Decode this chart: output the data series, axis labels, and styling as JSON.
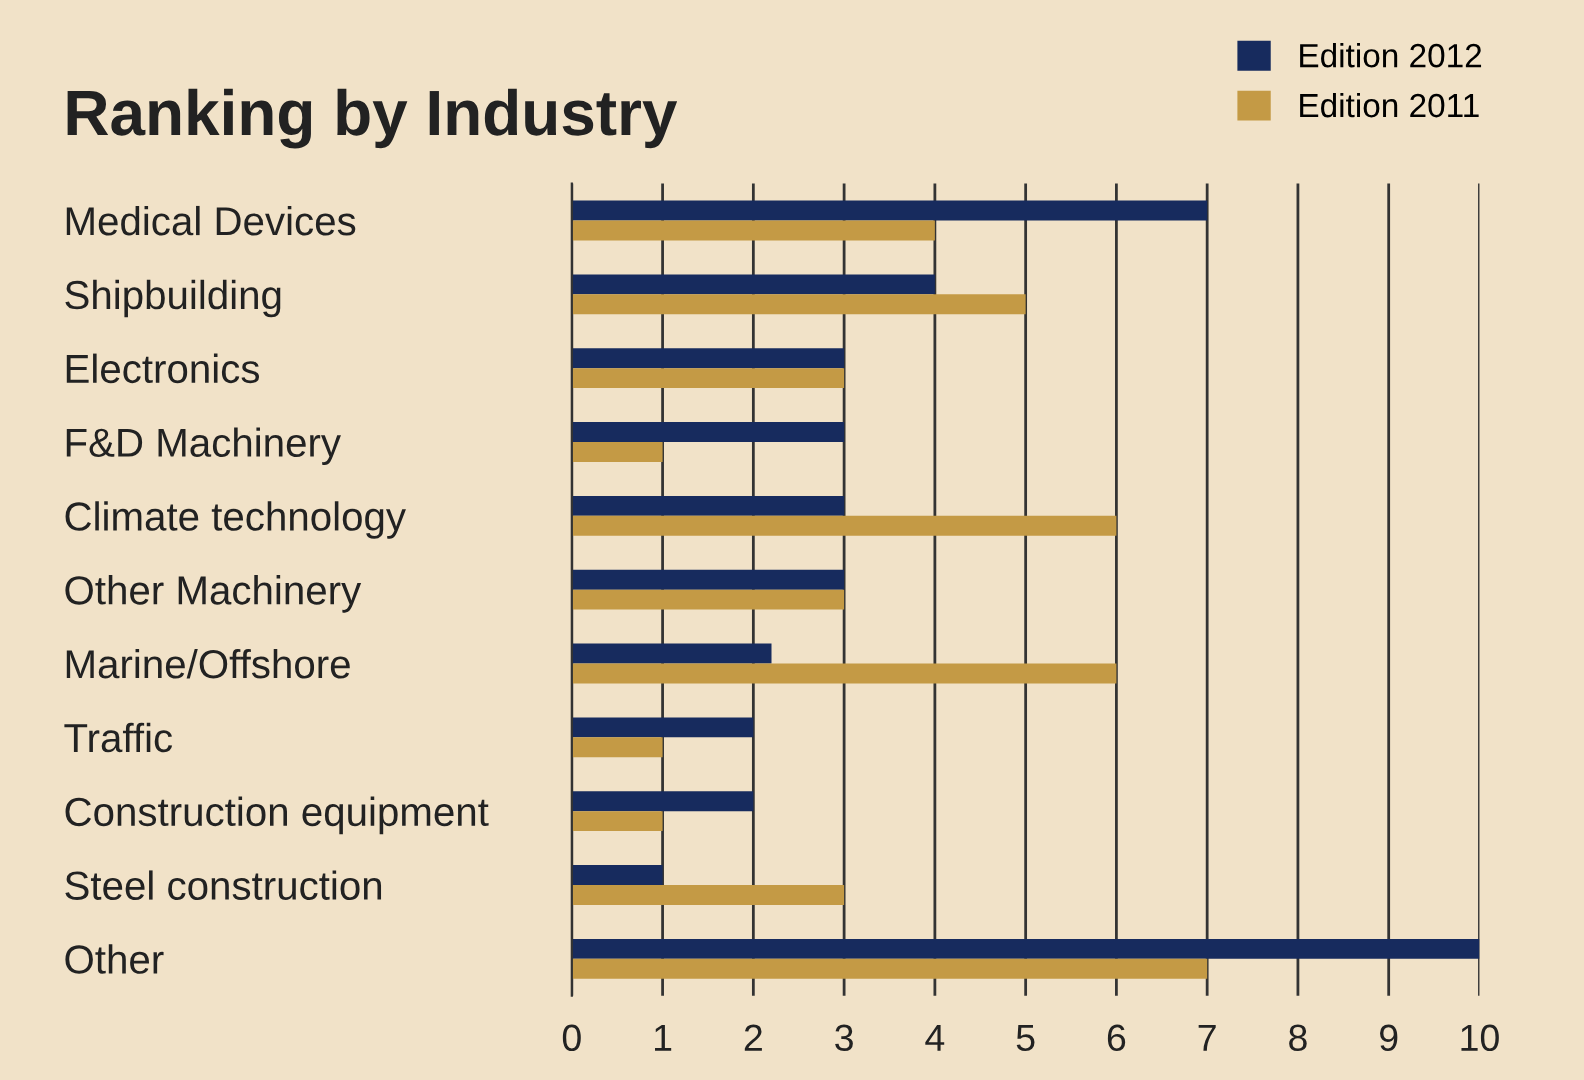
{
  "chart_data": {
    "type": "bar",
    "orientation": "horizontal",
    "title": "Ranking by Industry",
    "categories": [
      "Medical Devices",
      "Shipbuilding",
      "Electronics",
      "F&D Machinery",
      "Climate technology",
      "Other Machinery",
      "Marine/Offshore",
      "Traffic",
      "Construction equipment",
      "Steel construction",
      "Other"
    ],
    "series": [
      {
        "name": "Edition 2012",
        "color": "#172b5e",
        "values": [
          7,
          4,
          3,
          3,
          3,
          3,
          2.2,
          2,
          2,
          1,
          10
        ]
      },
      {
        "name": "Edition 2011",
        "color": "#c49a45",
        "values": [
          4,
          5,
          3,
          1,
          6,
          3,
          6,
          1,
          1,
          3,
          7
        ]
      }
    ],
    "xlim": [
      0,
      10
    ],
    "xticks": [
      0,
      1,
      2,
      3,
      4,
      5,
      6,
      7,
      8,
      9,
      10
    ],
    "grid": "x",
    "legend": "top right"
  }
}
